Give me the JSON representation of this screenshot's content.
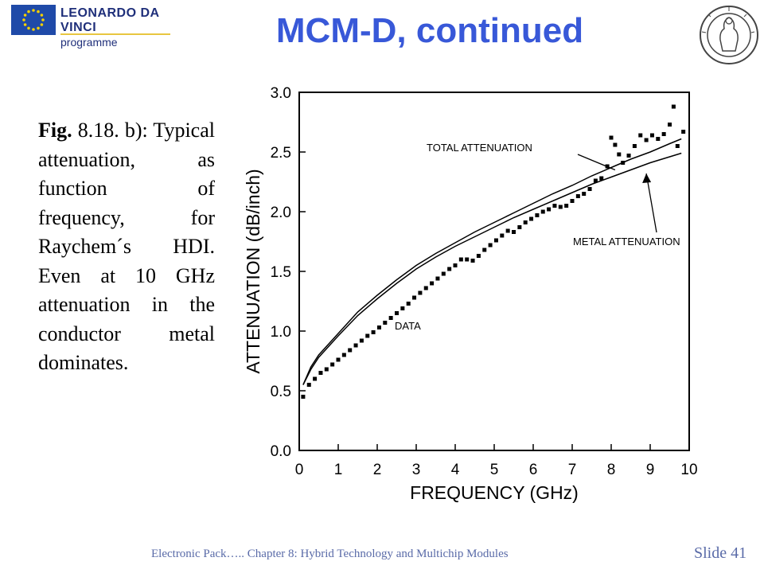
{
  "header": {
    "logo_line1": "LEONARDO DA VINCI",
    "logo_line2": "programme",
    "title": "MCM-D, continued",
    "title_color": "#3858d8"
  },
  "caption": {
    "fig_label": "Fig.",
    "text": " 8.18. b): Typical attenuation, as function of frequency, for Raychem´s HDI. Even at 10 GHz attenuation in the conductor metal dominates."
  },
  "footer": {
    "text": "Electronic Pack….. Chapter 8: Hybrid Technology and Multichip Modules",
    "slide": "Slide 41"
  },
  "chart_data": {
    "type": "scatter",
    "xlabel": "FREQUENCY (GHz)",
    "ylabel": "ATTENUATION (dB/inch)",
    "xlim": [
      0,
      10
    ],
    "ylim": [
      0,
      3.0
    ],
    "x_ticks": [
      "0",
      "1",
      "2",
      "3",
      "4",
      "5",
      "6",
      "7",
      "8",
      "9",
      "10"
    ],
    "y_ticks": [
      "0.0",
      "0.5",
      "1.0",
      "1.5",
      "2.0",
      "2.5",
      "3.0"
    ],
    "annotations": [
      "TOTAL ATTENUATION",
      "METAL ATTENUATION",
      "DATA"
    ],
    "series": [
      {
        "name": "TOTAL ATTENUATION",
        "kind": "line",
        "x": [
          0.1,
          0.3,
          0.5,
          1.0,
          1.5,
          2.0,
          2.5,
          3.0,
          3.5,
          4.0,
          4.5,
          5.0,
          5.5,
          6.0,
          6.5,
          7.0,
          7.5,
          8.0,
          8.5,
          9.0,
          9.5,
          9.8
        ],
        "y": [
          0.55,
          0.7,
          0.8,
          0.98,
          1.16,
          1.3,
          1.43,
          1.55,
          1.65,
          1.74,
          1.83,
          1.91,
          1.99,
          2.07,
          2.15,
          2.22,
          2.3,
          2.37,
          2.44,
          2.5,
          2.57,
          2.61
        ]
      },
      {
        "name": "METAL ATTENUATION",
        "kind": "line",
        "x": [
          0.1,
          0.3,
          0.5,
          1.0,
          1.5,
          2.0,
          2.5,
          3.0,
          3.5,
          4.0,
          4.5,
          5.0,
          5.5,
          6.0,
          6.5,
          7.0,
          7.5,
          8.0,
          8.5,
          9.0,
          9.5,
          9.8
        ],
        "y": [
          0.55,
          0.68,
          0.78,
          0.96,
          1.13,
          1.27,
          1.4,
          1.52,
          1.62,
          1.71,
          1.79,
          1.87,
          1.95,
          2.02,
          2.09,
          2.16,
          2.23,
          2.29,
          2.35,
          2.41,
          2.46,
          2.49
        ]
      },
      {
        "name": "DATA",
        "kind": "points",
        "x": [
          0.1,
          0.25,
          0.4,
          0.55,
          0.7,
          0.85,
          1.0,
          1.15,
          1.3,
          1.45,
          1.6,
          1.75,
          1.9,
          2.05,
          2.2,
          2.35,
          2.5,
          2.65,
          2.8,
          2.95,
          3.1,
          3.25,
          3.4,
          3.55,
          3.7,
          3.85,
          4.0,
          4.15,
          4.3,
          4.45,
          4.6,
          4.75,
          4.9,
          5.05,
          5.2,
          5.35,
          5.5,
          5.65,
          5.8,
          5.95,
          6.1,
          6.25,
          6.4,
          6.55,
          6.7,
          6.85,
          7.0,
          7.15,
          7.3,
          7.45,
          7.6,
          7.75,
          7.9,
          8.0,
          8.1,
          8.2,
          8.3,
          8.45,
          8.6,
          8.75,
          8.9,
          9.05,
          9.2,
          9.35,
          9.5,
          9.6,
          9.7,
          9.85
        ],
        "y": [
          0.45,
          0.55,
          0.6,
          0.65,
          0.68,
          0.72,
          0.76,
          0.8,
          0.84,
          0.88,
          0.92,
          0.96,
          0.99,
          1.03,
          1.07,
          1.11,
          1.15,
          1.19,
          1.23,
          1.28,
          1.32,
          1.36,
          1.4,
          1.44,
          1.48,
          1.52,
          1.55,
          1.6,
          1.6,
          1.59,
          1.63,
          1.68,
          1.72,
          1.76,
          1.8,
          1.84,
          1.83,
          1.87,
          1.91,
          1.94,
          1.97,
          2.0,
          2.02,
          2.05,
          2.04,
          2.05,
          2.09,
          2.13,
          2.15,
          2.19,
          2.26,
          2.28,
          2.38,
          2.62,
          2.56,
          2.48,
          2.41,
          2.47,
          2.55,
          2.64,
          2.6,
          2.64,
          2.61,
          2.65,
          2.73,
          2.88,
          2.55,
          2.67
        ]
      }
    ]
  }
}
